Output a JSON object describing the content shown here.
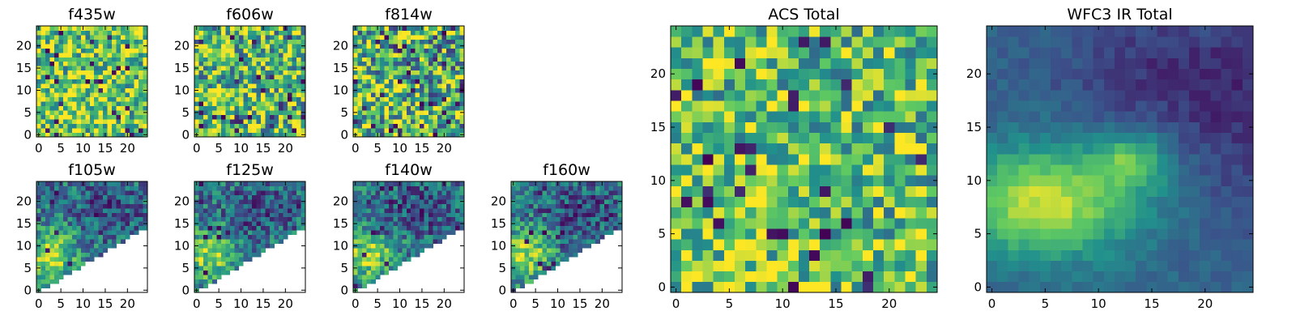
{
  "figure": {
    "colormap": "viridis",
    "colormap_stops": [
      "#440154",
      "#3b528b",
      "#21918c",
      "#5ec962",
      "#fde725"
    ],
    "background": "#ffffff"
  },
  "chart_data": [
    {
      "type": "heatmap",
      "title": "f435w",
      "grid_size": [
        25,
        25
      ],
      "x_ticks": [
        "0",
        "5",
        "10",
        "15",
        "20"
      ],
      "y_ticks": [
        "0",
        "5",
        "10",
        "15",
        "20"
      ],
      "xlim": [
        0,
        25
      ],
      "ylim": [
        0,
        25
      ],
      "coverage": "full",
      "pattern": "noise",
      "mean_level": 0.72,
      "noise_level": 0.38,
      "dark_fraction": 0.05
    },
    {
      "type": "heatmap",
      "title": "f606w",
      "grid_size": [
        25,
        25
      ],
      "x_ticks": [
        "0",
        "5",
        "10",
        "15",
        "20"
      ],
      "y_ticks": [
        "0",
        "5",
        "10",
        "15",
        "20"
      ],
      "xlim": [
        0,
        25
      ],
      "ylim": [
        0,
        25
      ],
      "coverage": "full",
      "pattern": "noise",
      "mean_level": 0.66,
      "noise_level": 0.42,
      "dark_fraction": 0.05
    },
    {
      "type": "heatmap",
      "title": "f814w",
      "grid_size": [
        25,
        25
      ],
      "x_ticks": [
        "0",
        "5",
        "10",
        "15",
        "20"
      ],
      "y_ticks": [
        "0",
        "5",
        "10",
        "15",
        "20"
      ],
      "xlim": [
        0,
        25
      ],
      "ylim": [
        0,
        25
      ],
      "coverage": "full",
      "pattern": "noise",
      "mean_level": 0.62,
      "noise_level": 0.45,
      "dark_fraction": 0.06
    },
    {
      "type": "heatmap",
      "title": "f105w",
      "grid_size": [
        25,
        25
      ],
      "x_ticks": [
        "0",
        "5",
        "10",
        "15",
        "20"
      ],
      "y_ticks": [
        "0",
        "5",
        "10",
        "15",
        "20"
      ],
      "xlim": [
        0,
        25
      ],
      "ylim": [
        0,
        25
      ],
      "coverage": "upper-left triangle (lower-right masked)",
      "pattern": "smooth",
      "mean_level": 0.55,
      "noise_level": 0.25,
      "dark_fraction": 0.04
    },
    {
      "type": "heatmap",
      "title": "f125w",
      "grid_size": [
        25,
        25
      ],
      "x_ticks": [
        "0",
        "5",
        "10",
        "15",
        "20"
      ],
      "y_ticks": [
        "0",
        "5",
        "10",
        "15",
        "20"
      ],
      "xlim": [
        0,
        25
      ],
      "ylim": [
        0,
        25
      ],
      "coverage": "upper-left triangle (lower-right masked)",
      "pattern": "smooth",
      "mean_level": 0.55,
      "noise_level": 0.25,
      "dark_fraction": 0.04
    },
    {
      "type": "heatmap",
      "title": "f140w",
      "grid_size": [
        25,
        25
      ],
      "x_ticks": [
        "0",
        "5",
        "10",
        "15",
        "20"
      ],
      "y_ticks": [
        "0",
        "5",
        "10",
        "15",
        "20"
      ],
      "xlim": [
        0,
        25
      ],
      "ylim": [
        0,
        25
      ],
      "coverage": "upper-left triangle (lower-right masked)",
      "pattern": "smooth",
      "mean_level": 0.55,
      "noise_level": 0.25,
      "dark_fraction": 0.04
    },
    {
      "type": "heatmap",
      "title": "f160w",
      "grid_size": [
        25,
        25
      ],
      "x_ticks": [
        "0",
        "5",
        "10",
        "15",
        "20"
      ],
      "y_ticks": [
        "0",
        "5",
        "10",
        "15",
        "20"
      ],
      "xlim": [
        0,
        25
      ],
      "ylim": [
        0,
        25
      ],
      "coverage": "upper-left triangle (lower-right masked)",
      "pattern": "smooth",
      "mean_level": 0.5,
      "noise_level": 0.25,
      "dark_fraction": 0.04
    },
    {
      "type": "heatmap",
      "title": "ACS Total",
      "grid_size": [
        25,
        25
      ],
      "x_ticks": [
        "0",
        "5",
        "10",
        "15",
        "20"
      ],
      "y_ticks": [
        "0",
        "5",
        "10",
        "15",
        "20"
      ],
      "xlim": [
        0,
        25
      ],
      "ylim": [
        0,
        25
      ],
      "coverage": "full",
      "pattern": "noise",
      "mean_level": 0.7,
      "noise_level": 0.35,
      "dark_fraction": 0.04
    },
    {
      "type": "heatmap",
      "title": "WFC3 IR Total",
      "grid_size": [
        25,
        25
      ],
      "x_ticks": [
        "0",
        "5",
        "10",
        "15",
        "20"
      ],
      "y_ticks": [
        "0",
        "5",
        "10",
        "15",
        "20"
      ],
      "xlim": [
        0,
        25
      ],
      "ylim": [
        0,
        25
      ],
      "coverage": "full",
      "pattern": "smooth",
      "mean_level": 0.45,
      "noise_level": 0.12,
      "dark_fraction": 0.0
    }
  ]
}
